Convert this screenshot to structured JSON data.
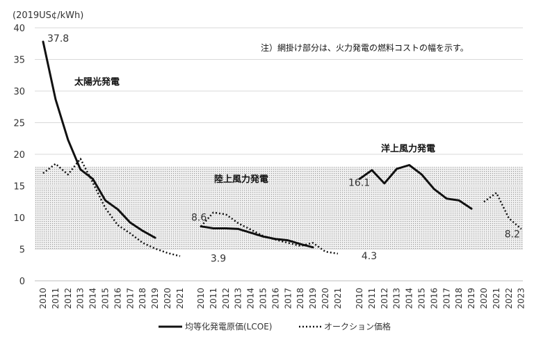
{
  "chart_data": {
    "type": "line",
    "ylabel": "(2019US¢/kWh)",
    "ylim": [
      0,
      40
    ],
    "yticks": [
      0,
      5,
      10,
      15,
      20,
      25,
      30,
      35,
      40
    ],
    "note": "注）網掛け部分は、火力発電の燃料コストの幅を示す。",
    "fossil_fuel_band": [
      5,
      18
    ],
    "legend": {
      "lcoe": "均等化発電原価(LCOE)",
      "auction": "オークション価格"
    },
    "segments": [
      {
        "name": "太陽光発電",
        "years": [
          "2010",
          "2011",
          "2012",
          "2013",
          "2014",
          "2015",
          "2016",
          "2017",
          "2018",
          "2019",
          "2020",
          "2021"
        ],
        "lcoe": [
          37.8,
          28.7,
          22.3,
          17.6,
          16.1,
          12.7,
          11.3,
          9.2,
          7.9,
          6.8,
          null,
          null
        ],
        "auction": [
          17.0,
          18.5,
          16.8,
          19.3,
          15.5,
          11.5,
          8.8,
          7.5,
          6.0,
          5.1,
          4.4,
          3.9
        ],
        "labels": [
          {
            "text": "37.8",
            "year_index": 0,
            "value": 37.8
          },
          {
            "text": "3.9",
            "year_index": 11,
            "value": 3.9
          }
        ]
      },
      {
        "name": "陸上風力発電",
        "years": [
          "2010",
          "2011",
          "2012",
          "2013",
          "2014",
          "2015",
          "2016",
          "2017",
          "2018",
          "2019",
          "2020",
          "2021"
        ],
        "lcoe": [
          8.6,
          8.3,
          8.3,
          8.2,
          7.6,
          7.0,
          6.6,
          6.4,
          5.8,
          5.3,
          null,
          null
        ],
        "auction": [
          8.6,
          10.8,
          10.5,
          9.1,
          8.1,
          7.1,
          6.5,
          6.0,
          5.5,
          6.0,
          4.6,
          4.3
        ],
        "labels": [
          {
            "text": "8.6",
            "year_index": 0,
            "value": 8.6
          },
          {
            "text": "4.3",
            "year_index": 11,
            "value": 4.3
          }
        ]
      },
      {
        "name": "洋上風力発電",
        "years": [
          "2010",
          "2011",
          "2012",
          "2013",
          "2014",
          "2015",
          "2016",
          "2017",
          "2018",
          "2019",
          "2020",
          "2021",
          "2022",
          "2023"
        ],
        "lcoe": [
          16.1,
          17.5,
          15.4,
          17.7,
          18.3,
          16.8,
          14.5,
          13.0,
          12.7,
          11.4,
          null,
          null,
          null,
          null
        ],
        "auction": [
          null,
          null,
          null,
          null,
          null,
          null,
          null,
          null,
          null,
          null,
          12.5,
          13.9,
          9.9,
          8.2
        ],
        "labels": [
          {
            "text": "16.1",
            "year_index": 0,
            "value": 16.1
          },
          {
            "text": "8.2",
            "year_index": 13,
            "value": 8.2
          }
        ]
      }
    ]
  }
}
